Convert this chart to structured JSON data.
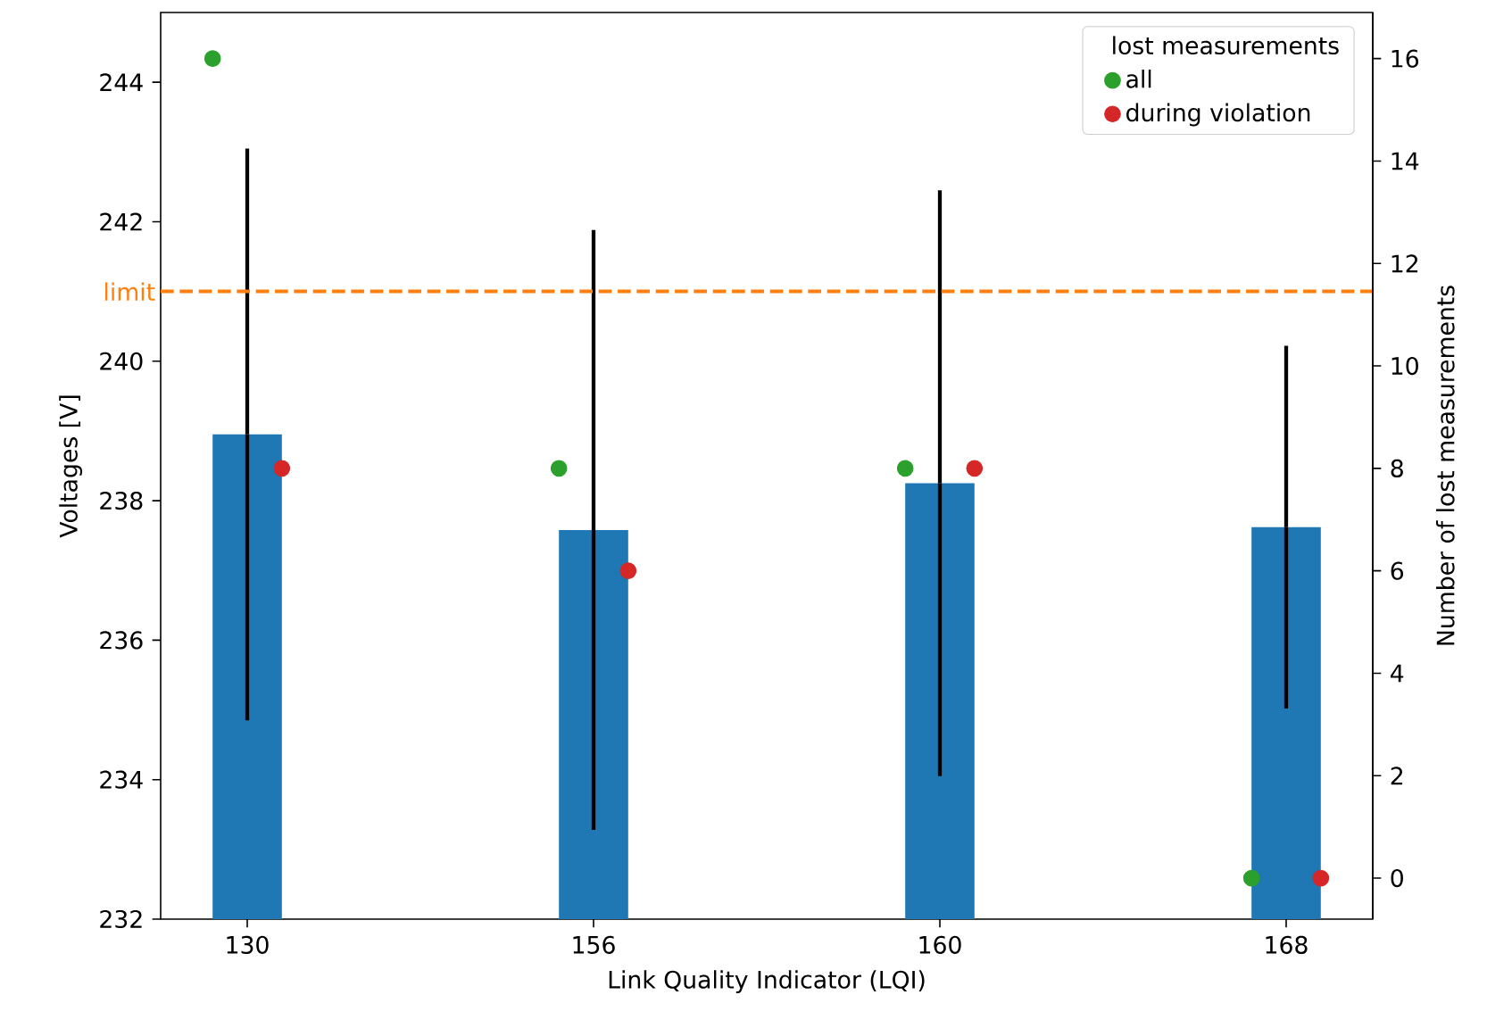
{
  "chart_data": {
    "type": "bar",
    "xlabel": "Link Quality Indicator (LQI)",
    "ylabel": "Voltages [V]",
    "y2label": "Number of lost measurements",
    "legend_title": "lost measurements",
    "categories": [
      "130",
      "156",
      "160",
      "168"
    ],
    "ylim": [
      232,
      245
    ],
    "yticks": [
      232,
      234,
      236,
      238,
      240,
      242,
      244
    ],
    "y2lim": [
      -0.8,
      16.9
    ],
    "y2ticks": [
      0,
      2,
      4,
      6,
      8,
      10,
      12,
      14,
      16
    ],
    "legend": "top right",
    "marker": "circle",
    "grid": false,
    "series": [
      {
        "color": "#1f77b4",
        "values": [
          238.95,
          237.58,
          238.25,
          237.62
        ],
        "errors": [
          4.1,
          4.3,
          4.2,
          2.6
        ]
      },
      {
        "type": "scatter",
        "name": "all",
        "axis": "y2",
        "color": "#2ca02c",
        "x": [
          "130",
          "156",
          "160",
          "168"
        ],
        "values": [
          16,
          8,
          8,
          0
        ]
      },
      {
        "type": "scatter",
        "name": "during violation",
        "axis": "y2",
        "color": "#d62728",
        "x": [
          "130",
          "156",
          "160",
          "168"
        ],
        "values": [
          8,
          6,
          8,
          0
        ]
      }
    ],
    "ref_lines": [
      {
        "axis": "y",
        "value": 241,
        "label": "limit",
        "color": "#ff7f0e",
        "line_style": "dashed"
      }
    ]
  }
}
